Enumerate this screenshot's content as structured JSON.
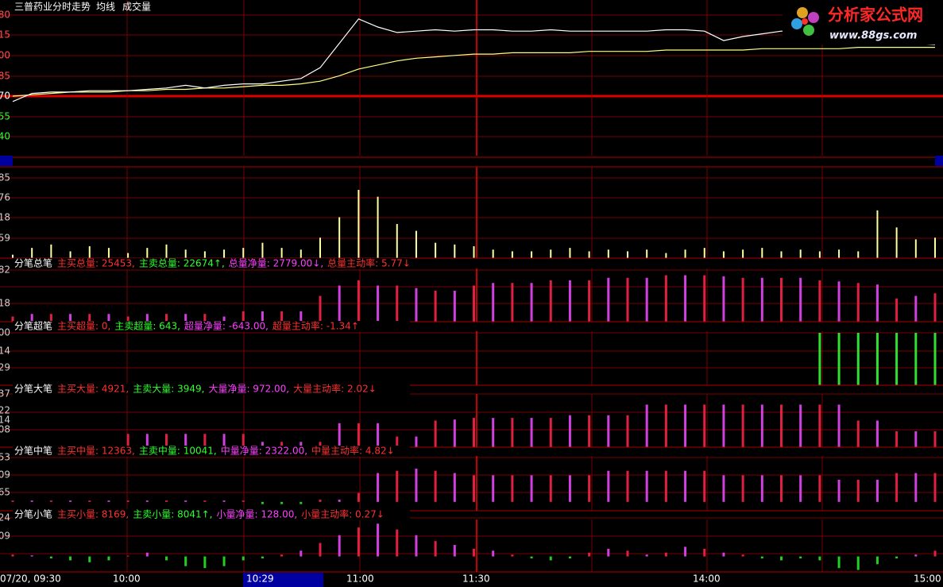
{
  "header": {
    "title": "三普药业分时走势",
    "avg_label": "均线",
    "volume_label": "成交量"
  },
  "logo": {
    "name": "分析家公式网",
    "url": "www.88gs.com"
  },
  "price_panel": {
    "axis_labels": [
      "80",
      "15",
      "00",
      "85",
      "70",
      "55",
      "40"
    ],
    "ylim": [
      8.25,
      9.3
    ],
    "price": {
      "color": "#ffffff",
      "values": [
        8.65,
        8.71,
        8.72,
        8.72,
        8.73,
        8.73,
        8.73,
        8.74,
        8.75,
        8.77,
        8.75,
        8.77,
        8.78,
        8.78,
        8.8,
        8.82,
        8.9,
        9.08,
        9.26,
        9.2,
        9.16,
        9.17,
        9.18,
        9.17,
        9.18,
        9.18,
        9.17,
        9.17,
        9.18,
        9.17,
        9.17,
        9.17,
        9.17,
        9.17,
        9.18,
        9.18,
        9.17,
        9.1,
        9.13,
        9.15,
        9.17,
        9.17,
        9.16,
        9.17,
        9.16,
        9.08,
        9.08,
        9.08,
        9.07
      ]
    },
    "average": {
      "color": "#ffff80",
      "values": [
        8.69,
        8.7,
        8.71,
        8.72,
        8.72,
        8.72,
        8.73,
        8.73,
        8.74,
        8.74,
        8.75,
        8.75,
        8.76,
        8.77,
        8.77,
        8.78,
        8.8,
        8.84,
        8.89,
        8.92,
        8.95,
        8.97,
        8.98,
        8.99,
        9.0,
        9.0,
        9.01,
        9.01,
        9.01,
        9.01,
        9.02,
        9.02,
        9.02,
        9.02,
        9.03,
        9.03,
        9.03,
        9.03,
        9.03,
        9.04,
        9.04,
        9.04,
        9.04,
        9.04,
        9.05,
        9.05,
        9.05,
        9.05,
        9.05
      ]
    }
  },
  "volume_panel": {
    "axis_labels": [
      "85",
      "76",
      "18",
      "59"
    ],
    "ylim": [
      0,
      235
    ],
    "color": "#ffffa0",
    "values": [
      10,
      30,
      40,
      20,
      35,
      30,
      15,
      30,
      40,
      25,
      20,
      25,
      30,
      45,
      30,
      25,
      60,
      120,
      200,
      180,
      100,
      80,
      45,
      40,
      35,
      25,
      20,
      20,
      25,
      30,
      20,
      25,
      20,
      25,
      15,
      25,
      30,
      20,
      25,
      30,
      20,
      25,
      20,
      25,
      20,
      140,
      90,
      55,
      60
    ]
  },
  "down_color": "#20d020",
  "indicators": [
    {
      "title": "分笔总笔",
      "axis_labels": [
        "82",
        "18"
      ],
      "ylim": [
        0,
        100
      ],
      "colors": [
        "#e02040",
        "#d040e0"
      ],
      "items": [
        {
          "text": "主买总量: 25453,",
          "color": "#ff3030"
        },
        {
          "text": "主卖总量: 22674↑,",
          "color": "#30ff30"
        },
        {
          "text": "总量净量: 2779.00↓,",
          "color": "#ff40ff"
        },
        {
          "text": "总量主动率: 5.77↓",
          "color": "#ff3030"
        }
      ],
      "values": [
        10,
        15,
        15,
        15,
        15,
        15,
        10,
        15,
        15,
        15,
        15,
        10,
        20,
        20,
        20,
        20,
        50,
        70,
        80,
        70,
        70,
        65,
        60,
        60,
        70,
        75,
        75,
        75,
        80,
        80,
        80,
        85,
        85,
        85,
        90,
        90,
        90,
        88,
        85,
        85,
        85,
        85,
        80,
        78,
        75,
        72,
        45,
        50,
        55
      ]
    },
    {
      "title": "分笔超笔",
      "axis_labels": [
        "00",
        "14",
        "29"
      ],
      "ylim": [
        0,
        100
      ],
      "colors": [
        "#30e030"
      ],
      "items": [
        {
          "text": "主买超量: 0,",
          "color": "#ff3030"
        },
        {
          "text": "主卖超量: 643,",
          "color": "#30ff30"
        },
        {
          "text": "超量净量: -643.00,",
          "color": "#ff40ff"
        },
        {
          "text": "超量主动率: -1.34↑",
          "color": "#ff3030"
        }
      ],
      "values": [
        0,
        0,
        0,
        0,
        0,
        0,
        0,
        0,
        0,
        0,
        0,
        0,
        0,
        0,
        0,
        0,
        0,
        0,
        0,
        0,
        0,
        0,
        0,
        0,
        0,
        0,
        0,
        0,
        0,
        0,
        0,
        0,
        0,
        0,
        0,
        0,
        0,
        0,
        0,
        0,
        0,
        0,
        100,
        100,
        100,
        100,
        100,
        100,
        100
      ]
    },
    {
      "title": "分笔大笔",
      "axis_labels": [
        "37",
        "22",
        "14",
        "08"
      ],
      "ylim": [
        0,
        100
      ],
      "colors": [
        "#e02040",
        "#d040e0"
      ],
      "items": [
        {
          "text": "主买大量: 4921,",
          "color": "#ff3030"
        },
        {
          "text": "主卖大量: 3949,",
          "color": "#30ff30"
        },
        {
          "text": "大量净量: 972.00,",
          "color": "#ff40ff"
        },
        {
          "text": "大量主动率: 2.02↓",
          "color": "#ff3030"
        }
      ],
      "values": [
        0,
        0,
        0,
        0,
        0,
        0,
        25,
        25,
        25,
        25,
        25,
        25,
        25,
        10,
        10,
        10,
        10,
        45,
        45,
        45,
        20,
        20,
        50,
        52,
        55,
        55,
        55,
        55,
        55,
        60,
        60,
        60,
        60,
        80,
        80,
        80,
        80,
        80,
        80,
        80,
        80,
        80,
        80,
        80,
        50,
        50,
        30,
        30,
        30
      ]
    },
    {
      "title": "分笔中笔",
      "axis_labels": [
        "53",
        "09",
        "65"
      ],
      "ylim": [
        -20,
        100
      ],
      "colors": [
        "#e02040",
        "#d040e0"
      ],
      "items": [
        {
          "text": "主买中量: 12363,",
          "color": "#ff3030"
        },
        {
          "text": "主卖中量: 10041,",
          "color": "#30ff30"
        },
        {
          "text": "中量净量: 2322.00,",
          "color": "#ff40ff"
        },
        {
          "text": "中量主动率: 4.82↓",
          "color": "#ff3030"
        }
      ],
      "values": [
        3,
        3,
        3,
        3,
        3,
        3,
        3,
        3,
        3,
        3,
        3,
        3,
        3,
        -5,
        -5,
        -5,
        5,
        5,
        20,
        65,
        70,
        75,
        70,
        65,
        60,
        60,
        60,
        60,
        60,
        60,
        60,
        70,
        70,
        70,
        70,
        70,
        70,
        60,
        60,
        60,
        60,
        60,
        60,
        50,
        50,
        50,
        65,
        65,
        65
      ]
    },
    {
      "title": "分笔小笔",
      "axis_labels": [
        "24",
        "09"
      ],
      "ylim": [
        -40,
        100
      ],
      "colors": [
        "#e02040",
        "#d040e0"
      ],
      "items": [
        {
          "text": "主买小量: 8169,",
          "color": "#ff3030"
        },
        {
          "text": "主卖小量: 8041↑,",
          "color": "#30ff30"
        },
        {
          "text": "小量净量: 128.00,",
          "color": "#ff40ff"
        },
        {
          "text": "小量主动率: 0.27↓",
          "color": "#ff3030"
        }
      ],
      "values": [
        5,
        3,
        -5,
        -10,
        -15,
        -10,
        2,
        10,
        -10,
        -25,
        -30,
        -25,
        -10,
        -5,
        5,
        15,
        35,
        55,
        75,
        85,
        70,
        55,
        40,
        30,
        20,
        15,
        5,
        -5,
        -10,
        -5,
        10,
        20,
        15,
        5,
        10,
        25,
        20,
        10,
        5,
        -5,
        -10,
        -5,
        -10,
        -30,
        -35,
        -20,
        -5,
        5,
        15
      ]
    }
  ],
  "time_axis": {
    "labels": [
      "07/20, 09:30",
      "10:00",
      "10:29",
      "11:00",
      "11:30",
      "14:00",
      "15:00"
    ]
  }
}
